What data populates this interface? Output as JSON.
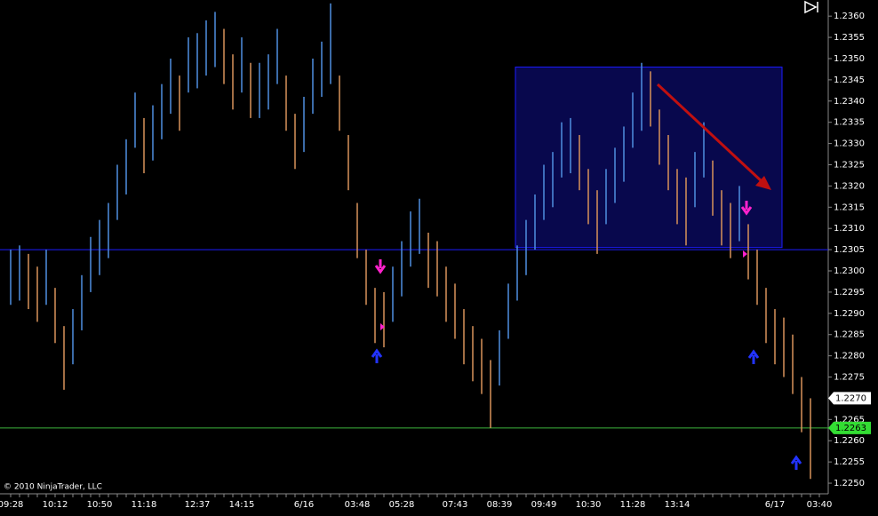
{
  "chart_data": {
    "type": "range",
    "categories": [
      "09:28",
      null,
      null,
      null,
      null,
      "10:12",
      null,
      null,
      null,
      null,
      "10:50",
      null,
      null,
      null,
      null,
      "11:18",
      null,
      null,
      null,
      null,
      null,
      "12:37",
      null,
      null,
      null,
      null,
      "14:15",
      null,
      null,
      null,
      null,
      null,
      null,
      "6/16",
      null,
      null,
      null,
      null,
      null,
      "03:48",
      null,
      null,
      null,
      null,
      "05:28",
      null,
      null,
      null,
      null,
      null,
      "07:43",
      null,
      null,
      null,
      null,
      "08:39",
      null,
      null,
      null,
      null,
      "09:49",
      null,
      null,
      null,
      null,
      "10:30",
      null,
      null,
      null,
      null,
      "11:28",
      null,
      null,
      null,
      null,
      "13:14",
      null,
      null,
      null,
      null,
      null,
      null,
      null,
      null,
      null,
      null,
      "6/17",
      null,
      null,
      null,
      null,
      "03:40"
    ],
    "high": [
      1.2305,
      1.2306,
      1.2304,
      1.2301,
      1.2305,
      1.2296,
      1.2287,
      1.2291,
      1.2299,
      1.2308,
      1.2312,
      1.2316,
      1.2325,
      1.2331,
      1.2342,
      1.2336,
      1.2339,
      1.2344,
      1.235,
      1.2346,
      1.2355,
      1.2356,
      1.2359,
      1.2361,
      1.2357,
      1.2351,
      1.2355,
      1.2349,
      1.2349,
      1.2351,
      1.2357,
      1.2346,
      1.2337,
      1.2341,
      1.235,
      1.2354,
      1.2363,
      1.2346,
      1.2332,
      1.2316,
      1.2305,
      1.2296,
      1.2295,
      1.2301,
      1.2307,
      1.2314,
      1.2317,
      1.2309,
      1.2307,
      1.2301,
      1.2297,
      1.2291,
      1.2287,
      1.2284,
      1.2279,
      1.2286,
      1.2297,
      1.2306,
      1.2312,
      1.2318,
      1.2325,
      1.2328,
      1.2335,
      1.2336,
      1.2332,
      1.2324,
      1.2319,
      1.2324,
      1.2329,
      1.2334,
      1.2342,
      1.2349,
      1.2347,
      1.2338,
      1.2332,
      1.2324,
      1.2322,
      1.2328,
      1.2335,
      1.2326,
      1.2319,
      1.2316,
      1.232,
      1.2311,
      1.2305,
      1.2296,
      1.2291,
      1.2289,
      1.2285,
      1.2275,
      1.227,
      null
    ],
    "low": [
      1.2292,
      1.2293,
      1.2291,
      1.2288,
      1.2292,
      1.2283,
      1.2272,
      1.2278,
      1.2286,
      1.2295,
      1.2299,
      1.2303,
      1.2312,
      1.2318,
      1.2329,
      1.2323,
      1.2326,
      1.2331,
      1.2337,
      1.2333,
      1.2342,
      1.2343,
      1.2346,
      1.2348,
      1.2344,
      1.2338,
      1.2342,
      1.2336,
      1.2336,
      1.2338,
      1.2344,
      1.2333,
      1.2324,
      1.2328,
      1.2337,
      1.2341,
      1.2344,
      1.2333,
      1.2319,
      1.2303,
      1.2292,
      1.2283,
      1.2282,
      1.2288,
      1.2294,
      1.2301,
      1.2304,
      1.2296,
      1.2294,
      1.2288,
      1.2284,
      1.2278,
      1.2274,
      1.2271,
      1.2263,
      1.2273,
      1.2284,
      1.2293,
      1.2299,
      1.2305,
      1.2312,
      1.2315,
      1.2322,
      1.2323,
      1.2319,
      1.2311,
      1.2304,
      1.2311,
      1.2316,
      1.2321,
      1.2329,
      1.2333,
      1.2334,
      1.2325,
      1.2319,
      1.2311,
      1.2306,
      1.2315,
      1.2322,
      1.2313,
      1.2306,
      1.2303,
      1.2307,
      1.2298,
      1.2292,
      1.2283,
      1.2278,
      1.2275,
      1.2271,
      1.2262,
      1.2251,
      null
    ],
    "up_color": "#4f8fe0",
    "down_color": "#d8925a",
    "ylim": [
      1.22475,
      1.23638
    ],
    "yticks": [
      {
        "value": 1.225,
        "label": "1.2250"
      },
      1.2255,
      {
        "value": 1.226,
        "label": "1.2260"
      },
      1.2265,
      {
        "value": 1.227,
        "label": "1.2270"
      },
      1.2275,
      {
        "value": 1.228,
        "label": "1.2280"
      },
      1.2285,
      {
        "value": 1.229,
        "label": "1.2290"
      },
      1.2295,
      {
        "value": 1.23,
        "label": "1.2300"
      },
      1.2305,
      {
        "value": 1.231,
        "label": "1.2310"
      },
      1.2315,
      {
        "value": 1.232,
        "label": "1.2320"
      },
      1.2325,
      {
        "value": 1.233,
        "label": "1.2330"
      },
      1.2335,
      {
        "value": 1.234,
        "label": "1.2340"
      },
      1.2345,
      {
        "value": 1.235,
        "label": "1.2350"
      },
      1.2355,
      {
        "value": 1.236,
        "label": "1.2360"
      }
    ],
    "lines": [
      {
        "value": 1.2305,
        "color": "#1c1cff"
      },
      {
        "value": 1.2263,
        "color": "#3cb43c"
      }
    ],
    "zone": {
      "high": 1.2348,
      "low": 1.23055,
      "color": "#1c1cff"
    },
    "price_markers": [
      {
        "value": 1.227,
        "label": "1.2270",
        "color": "#ffffff"
      },
      {
        "value": 1.2263,
        "label": "1.2263",
        "color": "#33dd33"
      }
    ],
    "copyright": "© 2010 NinjaTrader, LLC"
  }
}
